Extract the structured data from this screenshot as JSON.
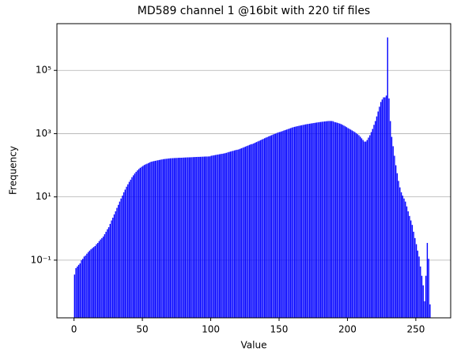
{
  "chart_data": {
    "type": "histogram",
    "title": "MD589 channel 1 @16bit with 220 tif files",
    "x_label": "Value",
    "y_label": "Frequency",
    "color": "#0000ff",
    "log_y": true,
    "grid": true,
    "xlim": [
      -12.5,
      275.5
    ],
    "ylim": [
      0.0015,
      3000000
    ],
    "xticks": [
      0,
      50,
      100,
      150,
      200,
      250
    ],
    "yticks": [
      {
        "value": 0.1,
        "label": "10⁻¹"
      },
      {
        "value": 10,
        "label": "10¹"
      },
      {
        "value": 1000,
        "label": "10³"
      },
      {
        "value": 100000,
        "label": "10⁵"
      }
    ],
    "bins": [
      0,
      1,
      2,
      3,
      4,
      5,
      6,
      7,
      8,
      9,
      10,
      11,
      12,
      13,
      14,
      15,
      16,
      17,
      18,
      19,
      20,
      21,
      22,
      23,
      24,
      25,
      26,
      27,
      28,
      29,
      30,
      31,
      32,
      33,
      34,
      35,
      36,
      37,
      38,
      39,
      40,
      41,
      42,
      43,
      44,
      45,
      46,
      47,
      48,
      49,
      50,
      51,
      52,
      53,
      54,
      55,
      56,
      57,
      58,
      59,
      60,
      61,
      62,
      63,
      64,
      65,
      66,
      67,
      68,
      69,
      70,
      71,
      72,
      73,
      74,
      75,
      76,
      77,
      78,
      79,
      80,
      81,
      82,
      83,
      84,
      85,
      86,
      87,
      88,
      89,
      90,
      91,
      92,
      93,
      94,
      95,
      96,
      97,
      98,
      99,
      100,
      101,
      102,
      103,
      104,
      105,
      106,
      107,
      108,
      109,
      110,
      111,
      112,
      113,
      114,
      115,
      116,
      117,
      118,
      119,
      120,
      121,
      122,
      123,
      124,
      125,
      126,
      127,
      128,
      129,
      130,
      131,
      132,
      133,
      134,
      135,
      136,
      137,
      138,
      139,
      140,
      141,
      142,
      143,
      144,
      145,
      146,
      147,
      148,
      149,
      150,
      151,
      152,
      153,
      154,
      155,
      156,
      157,
      158,
      159,
      160,
      161,
      162,
      163,
      164,
      165,
      166,
      167,
      168,
      169,
      170,
      171,
      172,
      173,
      174,
      175,
      176,
      177,
      178,
      179,
      180,
      181,
      182,
      183,
      184,
      185,
      186,
      187,
      188,
      189,
      190,
      191,
      192,
      193,
      194,
      195,
      196,
      197,
      198,
      199,
      200,
      201,
      202,
      203,
      204,
      205,
      206,
      207,
      208,
      209,
      210,
      211,
      212,
      213,
      214,
      215,
      216,
      217,
      218,
      219,
      220,
      221,
      222,
      223,
      224,
      225,
      226,
      227,
      228,
      229,
      230,
      231,
      232,
      233,
      234,
      235,
      236,
      237,
      238,
      239,
      240,
      241,
      242,
      243,
      244,
      245,
      246,
      247,
      248,
      249,
      250,
      251,
      252,
      253,
      254,
      255,
      256,
      257,
      258,
      259,
      260,
      261
    ],
    "values": [
      0.035,
      0.056,
      0.063,
      0.071,
      0.079,
      0.1,
      0.11,
      0.13,
      0.14,
      0.16,
      0.18,
      0.2,
      0.22,
      0.24,
      0.26,
      0.28,
      0.32,
      0.35,
      0.4,
      0.45,
      0.5,
      0.56,
      0.66,
      0.79,
      0.95,
      1.1,
      1.4,
      1.8,
      2.2,
      2.8,
      3.5,
      4.5,
      5.6,
      7.1,
      8.9,
      11,
      14,
      17,
      21,
      25,
      30,
      35,
      42,
      48,
      55,
      62,
      69,
      76,
      83,
      89,
      95,
      102,
      107,
      112,
      117,
      123,
      129,
      132,
      135,
      138,
      141,
      144,
      147,
      150,
      153,
      156,
      158,
      160,
      162,
      164,
      166,
      167,
      168,
      169,
      170,
      171,
      172,
      173,
      173,
      174,
      175,
      176,
      177,
      178,
      178,
      179,
      180,
      181,
      182,
      183,
      184,
      184,
      185,
      186,
      187,
      188,
      189,
      189,
      190,
      191,
      200,
      203,
      207,
      211,
      215,
      219,
      223,
      227,
      231,
      235,
      240,
      247,
      255,
      263,
      271,
      279,
      287,
      295,
      303,
      310,
      316,
      330,
      344,
      358,
      373,
      389,
      406,
      423,
      441,
      460,
      470,
      490,
      515,
      540,
      565,
      590,
      620,
      650,
      680,
      715,
      750,
      780,
      820,
      850,
      890,
      930,
      970,
      1000,
      1050,
      1100,
      1120,
      1160,
      1200,
      1250,
      1290,
      1340,
      1390,
      1440,
      1490,
      1550,
      1600,
      1640,
      1680,
      1720,
      1760,
      1800,
      1840,
      1880,
      1920,
      1960,
      2000,
      2030,
      2060,
      2100,
      2130,
      2170,
      2200,
      2240,
      2270,
      2310,
      2340,
      2370,
      2400,
      2430,
      2460,
      2490,
      2510,
      2510,
      2500,
      2480,
      2340,
      2280,
      2220,
      2150,
      2080,
      2000,
      1900,
      1800,
      1700,
      1600,
      1500,
      1420,
      1340,
      1260,
      1190,
      1120,
      1040,
      960,
      890,
      800,
      710,
      630,
      560,
      560,
      630,
      750,
      890,
      1120,
      1410,
      1900,
      2500,
      3500,
      5000,
      7100,
      10000,
      12000,
      14000,
      14000,
      16000,
      1100000,
      13000,
      2500,
      790,
      400,
      200,
      100,
      56,
      32,
      20,
      14,
      11,
      8.9,
      7.1,
      5,
      3.5,
      2.5,
      1.8,
      1.3,
      0.79,
      0.5,
      0.32,
      0.2,
      0.13,
      0.063,
      0.032,
      0.016,
      0.005,
      0.032,
      0.35,
      0.11,
      0.004
    ]
  }
}
